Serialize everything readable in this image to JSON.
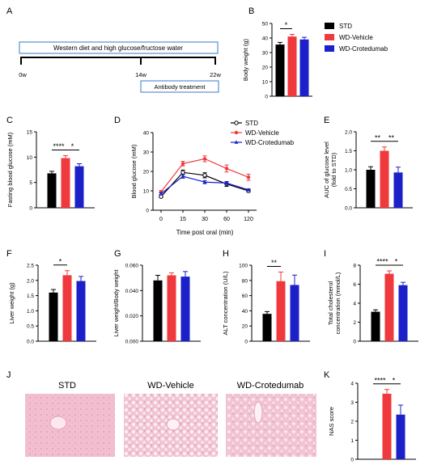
{
  "colors": {
    "std": "#000000",
    "vehicle": "#f0393c",
    "crotedumab": "#1b20c8",
    "histo_bg": "#f3c6d6",
    "timeline_box": "#3a78c8"
  },
  "legend": {
    "items": [
      "STD",
      "WD-Vehicle",
      "WD-Crotedumab"
    ]
  },
  "panel_a": {
    "letter": "A",
    "diet_label": "Western diet and high glucose/fructose water",
    "antibody_label": "Antibody treatment",
    "time_labels": [
      "0w",
      "14w",
      "22w"
    ]
  },
  "chart_data": [
    {
      "id": "B",
      "type": "bar",
      "letter": "B",
      "categories": [
        "STD",
        "WD-Vehicle",
        "WD-Crotedumab"
      ],
      "values": [
        35.5,
        41,
        39
      ],
      "errors": [
        1.5,
        1.5,
        1.5
      ],
      "ylabel": "Body weight (g)",
      "ylim": [
        0,
        50
      ],
      "yticks": [
        0,
        10,
        20,
        30,
        40,
        50
      ],
      "significance": [
        {
          "from": 0,
          "to": 1,
          "label": "*"
        }
      ]
    },
    {
      "id": "C",
      "type": "bar",
      "letter": "C",
      "categories": [
        "STD",
        "WD-Vehicle",
        "WD-Crotedumab"
      ],
      "values": [
        6.8,
        9.8,
        8.2
      ],
      "errors": [
        0.4,
        0.5,
        0.5
      ],
      "ylabel": "Fasting blood glucose (mM)",
      "ylim": [
        0,
        15
      ],
      "yticks": [
        0,
        5,
        10,
        15
      ],
      "significance": [
        {
          "from": 0,
          "to": 1,
          "label": "****"
        },
        {
          "from": 1,
          "to": 2,
          "label": "*"
        }
      ]
    },
    {
      "id": "D",
      "type": "line",
      "letter": "D",
      "x": [
        0,
        15,
        30,
        60,
        120
      ],
      "series": [
        {
          "name": "STD",
          "values": [
            7,
            19.5,
            18,
            13.5,
            10
          ],
          "errors": [
            0.5,
            1.2,
            1.3,
            1.2,
            0.7
          ]
        },
        {
          "name": "WD-Vehicle",
          "values": [
            9.5,
            24,
            26.5,
            21.5,
            17
          ],
          "errors": [
            0.6,
            1.2,
            1.5,
            1.8,
            1.6
          ]
        },
        {
          "name": "WD-Crotedumab",
          "values": [
            8.5,
            17.5,
            14.5,
            14,
            10.5
          ],
          "errors": [
            0.5,
            1.0,
            0.8,
            0.8,
            0.5
          ]
        }
      ],
      "xlabel": "Time post oral (min)",
      "ylabel": "Blood glucose (mM)",
      "ylim": [
        0,
        40
      ],
      "yticks": [
        0,
        10,
        20,
        30,
        40
      ]
    },
    {
      "id": "E",
      "type": "bar",
      "letter": "E",
      "categories": [
        "STD",
        "WD-Vehicle",
        "WD-Crotedumab"
      ],
      "values": [
        1.0,
        1.5,
        0.93
      ],
      "errors": [
        0.08,
        0.1,
        0.14
      ],
      "ylabel": "AUC of glucose level (fold to STD)",
      "ylabel_lines": [
        "AUC of glucose level",
        "(fold to STD)"
      ],
      "ylim": [
        0,
        2.0
      ],
      "yticks": [
        "0.0",
        "0.5",
        "1.0",
        "1.5",
        "2.0"
      ],
      "significance": [
        {
          "from": 0,
          "to": 1,
          "label": "**"
        },
        {
          "from": 1,
          "to": 2,
          "label": "**"
        }
      ]
    },
    {
      "id": "F",
      "type": "bar",
      "letter": "F",
      "categories": [
        "STD",
        "WD-Vehicle",
        "WD-Crotedumab"
      ],
      "values": [
        1.6,
        2.17,
        1.98
      ],
      "errors": [
        0.1,
        0.15,
        0.15
      ],
      "ylabel": "Liver weight (g)",
      "ylim": [
        0,
        2.5
      ],
      "yticks": [
        "0.0",
        "0.5",
        "1.0",
        "1.5",
        "2.0",
        "2.5"
      ],
      "significance": [
        {
          "from": 0,
          "to": 1,
          "label": "*"
        }
      ]
    },
    {
      "id": "G",
      "type": "bar",
      "letter": "G",
      "categories": [
        "STD",
        "WD-Vehicle",
        "WD-Crotedumab"
      ],
      "values": [
        0.048,
        0.052,
        0.051
      ],
      "errors": [
        0.004,
        0.002,
        0.004
      ],
      "ylabel": "Liver weight/Body weight",
      "ylim": [
        0,
        0.06
      ],
      "yticks": [
        "0.000",
        "0.020",
        "0.040",
        "0.060"
      ],
      "significance": []
    },
    {
      "id": "H",
      "type": "bar",
      "letter": "H",
      "categories": [
        "STD",
        "WD-Vehicle",
        "WD-Crotedumab"
      ],
      "values": [
        36,
        79,
        74
      ],
      "errors": [
        3,
        12,
        13
      ],
      "ylabel": "ALT concentration (U/L)",
      "ylim": [
        0,
        100
      ],
      "yticks": [
        0,
        20,
        40,
        60,
        80,
        100
      ],
      "significance": [
        {
          "from": 0,
          "to": 1,
          "label": "**"
        }
      ]
    },
    {
      "id": "I",
      "type": "bar",
      "letter": "I",
      "categories": [
        "STD",
        "WD-Vehicle",
        "WD-Crotedumab"
      ],
      "values": [
        3.1,
        7.1,
        5.9
      ],
      "errors": [
        0.2,
        0.3,
        0.3
      ],
      "ylabel": "Total cholesterol concentration (mmol/L)",
      "ylabel_lines": [
        "Total cholesterol",
        "concentration (mmol/L)"
      ],
      "ylim": [
        0,
        8
      ],
      "yticks": [
        0,
        2,
        4,
        6,
        8
      ],
      "significance": [
        {
          "from": 0,
          "to": 1,
          "label": "****"
        },
        {
          "from": 1,
          "to": 2,
          "label": "*"
        }
      ]
    },
    {
      "id": "K",
      "type": "bar",
      "letter": "K",
      "categories": [
        "STD",
        "WD-Vehicle",
        "WD-Crotedumab"
      ],
      "values": [
        0,
        3.45,
        2.35
      ],
      "errors": [
        0,
        0.22,
        0.5
      ],
      "ylabel": "NAS score",
      "ylim": [
        0,
        4
      ],
      "yticks": [
        0,
        1,
        2,
        3,
        4
      ],
      "significance": [
        {
          "from": 0,
          "to": 1,
          "label": "****"
        },
        {
          "from": 1,
          "to": 2,
          "label": "*"
        }
      ]
    }
  ],
  "panel_j": {
    "letter": "J",
    "titles": [
      "STD",
      "WD-Vehicle",
      "WD-Crotedumab"
    ]
  }
}
